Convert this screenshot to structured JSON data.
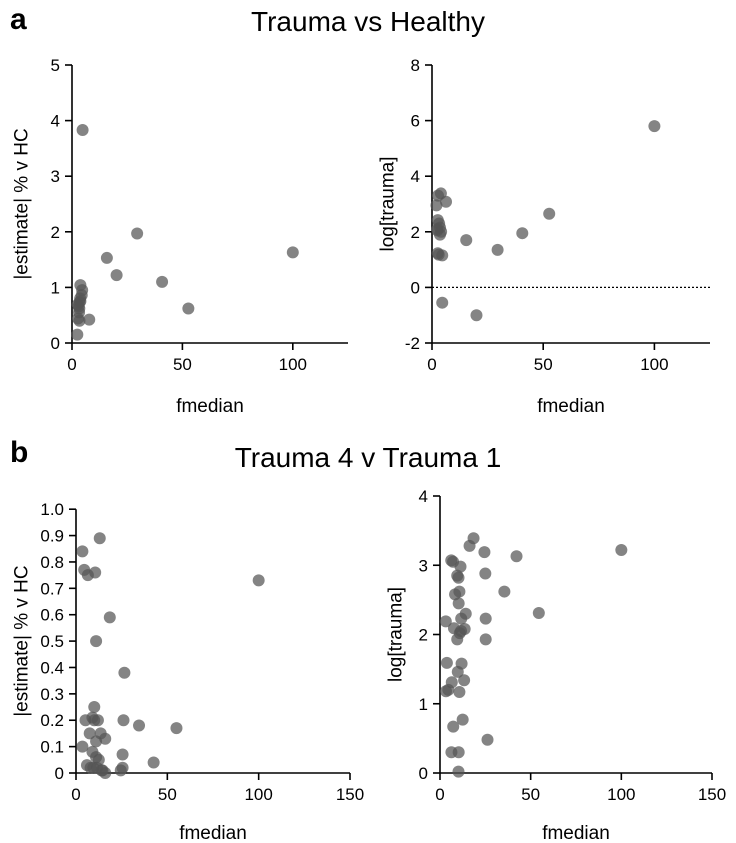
{
  "panels": [
    {
      "letter": "a",
      "title": "Trauma vs Healthy"
    },
    {
      "letter": "b",
      "title": "Trauma 4 v Trauma 1"
    }
  ],
  "chart_data": [
    {
      "type": "scatter",
      "xlabel": "fmedian",
      "ylabel": "|estimate| % v HC",
      "xlim": [
        0,
        125
      ],
      "ylim": [
        0,
        5
      ],
      "xticks": [
        0,
        50,
        100
      ],
      "yticks": [
        0,
        1,
        2,
        3,
        4,
        5
      ],
      "points": [
        [
          4.8,
          3.83
        ],
        [
          29.5,
          1.97
        ],
        [
          15.8,
          1.53
        ],
        [
          100,
          1.63
        ],
        [
          20.2,
          1.22
        ],
        [
          40.8,
          1.1
        ],
        [
          52.7,
          0.62
        ],
        [
          7.8,
          0.42
        ],
        [
          3.8,
          1.04
        ],
        [
          4.6,
          0.95
        ],
        [
          4.4,
          0.86
        ],
        [
          3.7,
          0.8
        ],
        [
          3.4,
          0.73
        ],
        [
          2.6,
          0.69
        ],
        [
          3.3,
          0.62
        ],
        [
          3.2,
          0.55
        ],
        [
          2.7,
          0.44
        ],
        [
          3.4,
          0.4
        ],
        [
          2.4,
          0.15
        ],
        [
          3.8,
          0.75
        ],
        [
          3.0,
          0.66
        ]
      ]
    },
    {
      "type": "scatter",
      "xlabel": "fmedian",
      "ylabel": "log[trauma]",
      "xlim": [
        0,
        125
      ],
      "ylim": [
        -2,
        8
      ],
      "xticks": [
        0,
        50,
        100
      ],
      "yticks": [
        -2,
        0,
        2,
        4,
        6,
        8
      ],
      "reference_line": {
        "y": 0,
        "style": "dotted"
      },
      "points": [
        [
          100,
          5.8
        ],
        [
          4.0,
          3.38
        ],
        [
          2.7,
          3.3
        ],
        [
          6.3,
          3.08
        ],
        [
          2.0,
          2.95
        ],
        [
          52.7,
          2.65
        ],
        [
          2.6,
          2.42
        ],
        [
          3.2,
          2.3
        ],
        [
          3.6,
          2.15
        ],
        [
          2.4,
          2.05
        ],
        [
          3.6,
          1.9
        ],
        [
          40.6,
          1.95
        ],
        [
          15.4,
          1.7
        ],
        [
          29.5,
          1.35
        ],
        [
          3.0,
          1.18
        ],
        [
          2.6,
          1.23
        ],
        [
          4.6,
          1.15
        ],
        [
          4.6,
          -0.55
        ],
        [
          20.0,
          -1.0
        ],
        [
          2.4,
          2.1
        ],
        [
          4.1,
          2.0
        ]
      ]
    },
    {
      "type": "scatter",
      "xlabel": "fmedian",
      "ylabel": "|estimate| % v HC",
      "xlim": [
        0,
        150
      ],
      "ylim": [
        0,
        1.05
      ],
      "xticks": [
        0,
        50,
        100,
        150
      ],
      "yticks": [
        0,
        0.1,
        0.2,
        0.3,
        0.4,
        0.5,
        0.6,
        0.7,
        0.8,
        0.9,
        1.0
      ],
      "ytick_labels": [
        "0",
        "0.1",
        "0.2",
        "0.3",
        "0.4",
        "0.5",
        "0.6",
        "0.7",
        "0.8",
        "0.9",
        "1.0"
      ],
      "points": [
        [
          13,
          0.89
        ],
        [
          3.5,
          0.84
        ],
        [
          100,
          0.73
        ],
        [
          10.5,
          0.76
        ],
        [
          4.5,
          0.77
        ],
        [
          6.5,
          0.75
        ],
        [
          18.5,
          0.59
        ],
        [
          11,
          0.5
        ],
        [
          26.5,
          0.38
        ],
        [
          10,
          0.25
        ],
        [
          5.2,
          0.2
        ],
        [
          9,
          0.21
        ],
        [
          10,
          0.2
        ],
        [
          12,
          0.2
        ],
        [
          26,
          0.2
        ],
        [
          34.5,
          0.18
        ],
        [
          7.5,
          0.15
        ],
        [
          13.5,
          0.15
        ],
        [
          16,
          0.13
        ],
        [
          11,
          0.12
        ],
        [
          25.5,
          0.07
        ],
        [
          55,
          0.17
        ],
        [
          42.5,
          0.04
        ],
        [
          3.5,
          0.1
        ],
        [
          6,
          0.03
        ],
        [
          8,
          0.02
        ],
        [
          9.5,
          0.02
        ],
        [
          11.5,
          0.02
        ],
        [
          14,
          0.01
        ],
        [
          24.5,
          0.01
        ],
        [
          25.5,
          0.02
        ],
        [
          12.5,
          0.05
        ],
        [
          9,
          0.08
        ],
        [
          11,
          0.06
        ],
        [
          14.5,
          0.01
        ],
        [
          16,
          0.0
        ]
      ]
    },
    {
      "type": "scatter",
      "xlabel": "fmedian",
      "ylabel": "log[trauma]",
      "xlim": [
        0,
        150
      ],
      "ylim": [
        0,
        4
      ],
      "xticks": [
        0,
        50,
        100,
        150
      ],
      "yticks": [
        0,
        1,
        2,
        3,
        4
      ],
      "points": [
        [
          18.5,
          3.39
        ],
        [
          16.3,
          3.28
        ],
        [
          24.5,
          3.19
        ],
        [
          42.2,
          3.13
        ],
        [
          100,
          3.22
        ],
        [
          6.2,
          3.07
        ],
        [
          7.2,
          3.05
        ],
        [
          11.3,
          2.98
        ],
        [
          9.5,
          2.85
        ],
        [
          10.2,
          2.82
        ],
        [
          25,
          2.88
        ],
        [
          35.5,
          2.62
        ],
        [
          10.7,
          2.62
        ],
        [
          8.3,
          2.58
        ],
        [
          10.3,
          2.45
        ],
        [
          14.2,
          2.3
        ],
        [
          54.5,
          2.31
        ],
        [
          11.7,
          2.23
        ],
        [
          25.2,
          2.23
        ],
        [
          3.2,
          2.19
        ],
        [
          7.7,
          2.09
        ],
        [
          13.6,
          2.08
        ],
        [
          11.6,
          2.05
        ],
        [
          10.9,
          2.02
        ],
        [
          25.2,
          1.93
        ],
        [
          9.5,
          1.93
        ],
        [
          3.8,
          1.59
        ],
        [
          11.9,
          1.58
        ],
        [
          4.6,
          1.2
        ],
        [
          3.3,
          1.18
        ],
        [
          6.5,
          1.31
        ],
        [
          13.3,
          1.34
        ],
        [
          10.7,
          1.17
        ],
        [
          9.8,
          1.46
        ],
        [
          7.3,
          0.67
        ],
        [
          12.5,
          0.77
        ],
        [
          26.2,
          0.48
        ],
        [
          6.3,
          0.3
        ],
        [
          10.3,
          0.3
        ],
        [
          10.2,
          0.02
        ]
      ]
    }
  ]
}
